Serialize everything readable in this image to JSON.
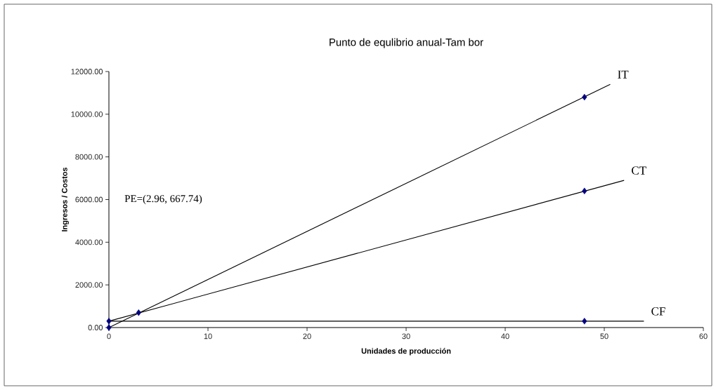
{
  "chart_data": {
    "type": "scatter",
    "title": "Punto de equlibrio anual-Tam bor",
    "xlabel": "Unidades de producción",
    "ylabel": "Ingresos / Costos",
    "xlim": [
      0,
      60
    ],
    "xticks": [
      0,
      10,
      20,
      30,
      40,
      50,
      60
    ],
    "ylim": [
      0,
      12000
    ],
    "yticks": [
      {
        "value": 0,
        "label": "0.00"
      },
      {
        "value": 2000,
        "label": "2000.00"
      },
      {
        "value": 4000,
        "label": "4000.00"
      },
      {
        "value": 6000,
        "label": "6000.00"
      },
      {
        "value": 8000,
        "label": "8000.00"
      },
      {
        "value": 10000,
        "label": "10000.00"
      },
      {
        "value": 12000,
        "label": "12000.00"
      }
    ],
    "marker": "diamond",
    "annotations": [
      "PE=(2.96,  667.74)"
    ],
    "series": [
      {
        "color": "#000080",
        "x": [
          0,
          0,
          3,
          48,
          48,
          48
        ],
        "values": [
          0,
          300,
          700,
          10800,
          6400,
          300
        ]
      },
      {
        "type": "line",
        "name": "IT",
        "color": "#000000",
        "marker": "none",
        "x": [
          0,
          50.6
        ],
        "values": [
          0,
          11400
        ]
      },
      {
        "type": "line",
        "name": "CT",
        "color": "#000000",
        "marker": "none",
        "x": [
          0,
          52
        ],
        "values": [
          300,
          6900
        ]
      },
      {
        "type": "line",
        "name": "CF",
        "color": "#000000",
        "marker": "none",
        "x": [
          0,
          54
        ],
        "values": [
          300,
          300
        ]
      }
    ]
  }
}
